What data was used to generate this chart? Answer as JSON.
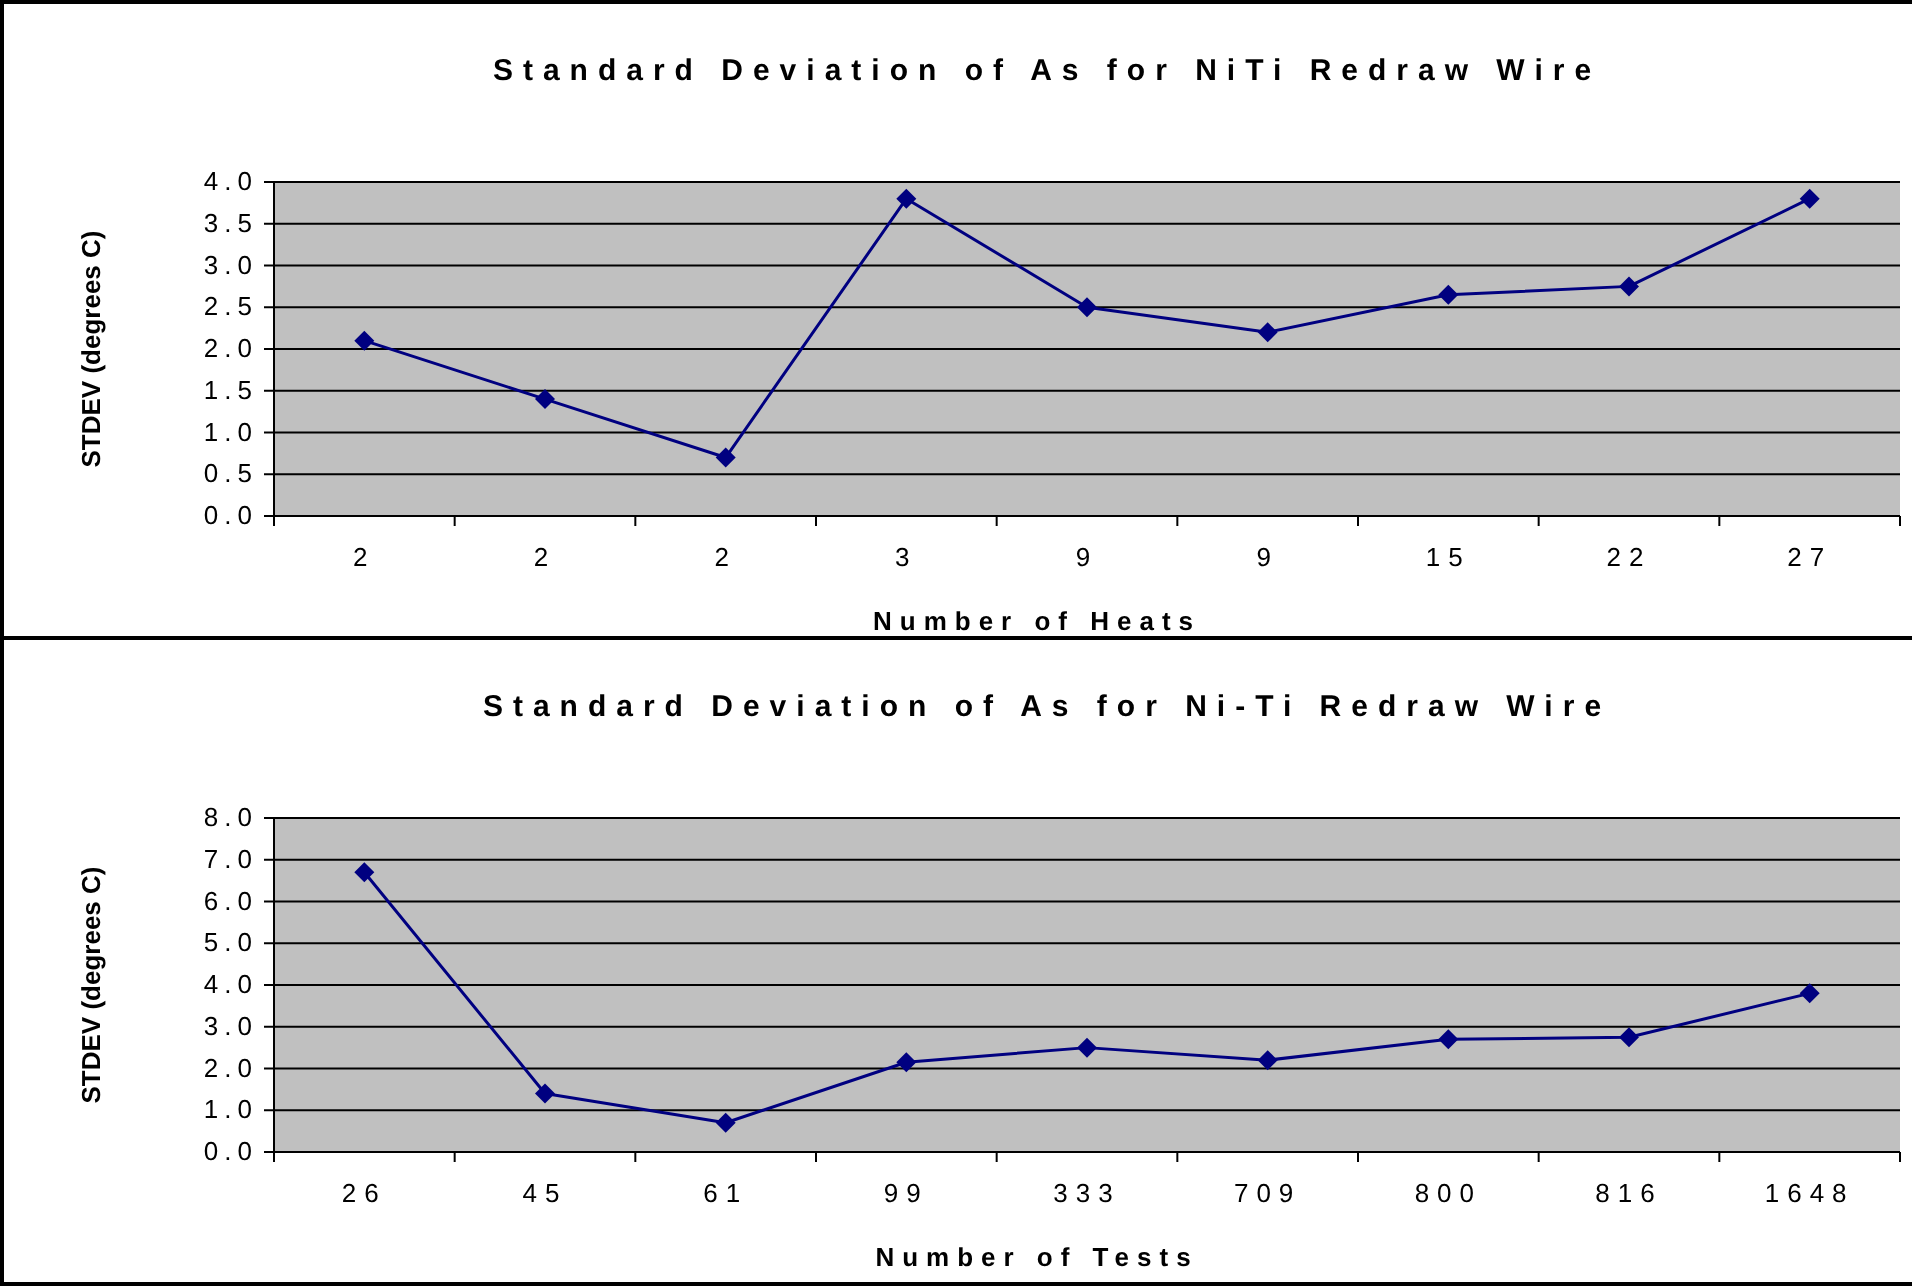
{
  "chart_data": [
    {
      "type": "line",
      "title": "Standard Deviation of As for NiTi Redraw Wire",
      "xlabel": "Number of Heats",
      "ylabel": "STDEV (degrees C)",
      "categories": [
        "2",
        "2",
        "2",
        "3",
        "9",
        "9",
        "15",
        "22",
        "27"
      ],
      "series": [
        {
          "color": "#000080",
          "values": [
            2.1,
            1.4,
            0.7,
            3.8,
            2.5,
            2.2,
            2.65,
            2.75,
            3.8
          ]
        }
      ],
      "ylim": [
        0,
        4
      ],
      "yticks": [
        {
          "value": 0,
          "label": "0.0"
        },
        {
          "value": 0.5,
          "label": "0.5"
        },
        {
          "value": 1,
          "label": "1.0"
        },
        {
          "value": 1.5,
          "label": "1.5"
        },
        {
          "value": 2,
          "label": "2.0"
        },
        {
          "value": 2.5,
          "label": "2.5"
        },
        {
          "value": 3,
          "label": "3.0"
        },
        {
          "value": 3.5,
          "label": "3.5"
        },
        {
          "value": 4,
          "label": "4.0"
        }
      ],
      "grid": "y",
      "marker": "diamond",
      "line_style": "solid"
    },
    {
      "type": "line",
      "title": "Standard Deviation of As for Ni-Ti Redraw Wire",
      "xlabel": "Number of Tests",
      "ylabel": "STDEV (degrees C)",
      "categories": [
        "26",
        "45",
        "61",
        "99",
        "333",
        "709",
        "800",
        "816",
        "1648"
      ],
      "series": [
        {
          "color": "#000080",
          "values": [
            6.7,
            1.4,
            0.7,
            2.15,
            2.5,
            2.2,
            2.7,
            2.75,
            3.8
          ]
        }
      ],
      "ylim": [
        0,
        8
      ],
      "yticks": [
        {
          "value": 0,
          "label": "0.0"
        },
        {
          "value": 1,
          "label": "1.0"
        },
        {
          "value": 2,
          "label": "2.0"
        },
        {
          "value": 3,
          "label": "3.0"
        },
        {
          "value": 4,
          "label": "4.0"
        },
        {
          "value": 5,
          "label": "5.0"
        },
        {
          "value": 6,
          "label": "6.0"
        },
        {
          "value": 7,
          "label": "7.0"
        },
        {
          "value": 8,
          "label": "8.0"
        }
      ],
      "grid": "y",
      "marker": "diamond",
      "line_style": "solid"
    }
  ]
}
